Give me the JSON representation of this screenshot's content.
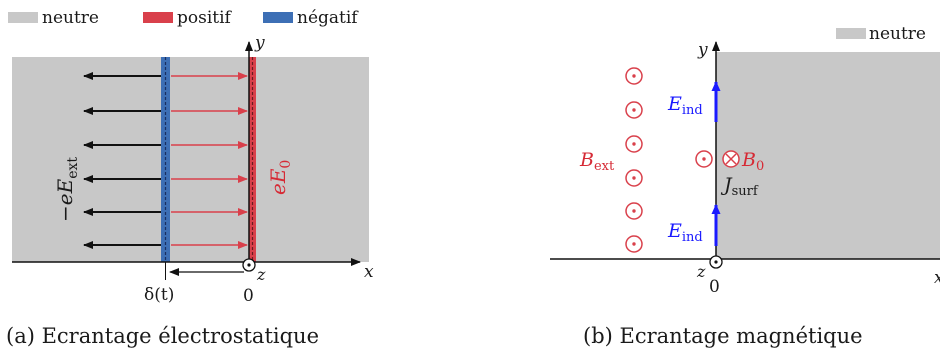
{
  "panel_a": {
    "legend": {
      "neutral": "neutre",
      "positive": "positif",
      "negative": "négatif"
    },
    "axis_y": "y",
    "axis_x": "x",
    "axis_z": "z",
    "origin": "0",
    "delta_label": "δ(t)",
    "left_field_label": "−eE",
    "left_field_sub": "ext",
    "right_field_label": "eE",
    "right_field_sub": "0",
    "caption": "(a) Ecrantage électrostatique"
  },
  "panel_b": {
    "legend": {
      "neutral": "neutre"
    },
    "axis_y": "y",
    "axis_x": "x",
    "axis_z": "z",
    "origin": "0",
    "bext_label": "B",
    "bext_sub": "ext",
    "b0_label": "B",
    "b0_sub": "0",
    "eind_top": "E",
    "eind_top_sub": "ind",
    "eind_bottom": "E",
    "eind_bottom_sub": "ind",
    "jsurf_label": "J",
    "jsurf_sub": "surf",
    "caption": "(b) Ecrantage magnétique"
  },
  "colors": {
    "neutral": "#c8c8c8",
    "positive": "#d9404b",
    "negative": "#3d6fb5",
    "field_arrow_red": "#d9404b",
    "induced_arrow": "#1a1aff",
    "text_red": "#d62a35"
  }
}
